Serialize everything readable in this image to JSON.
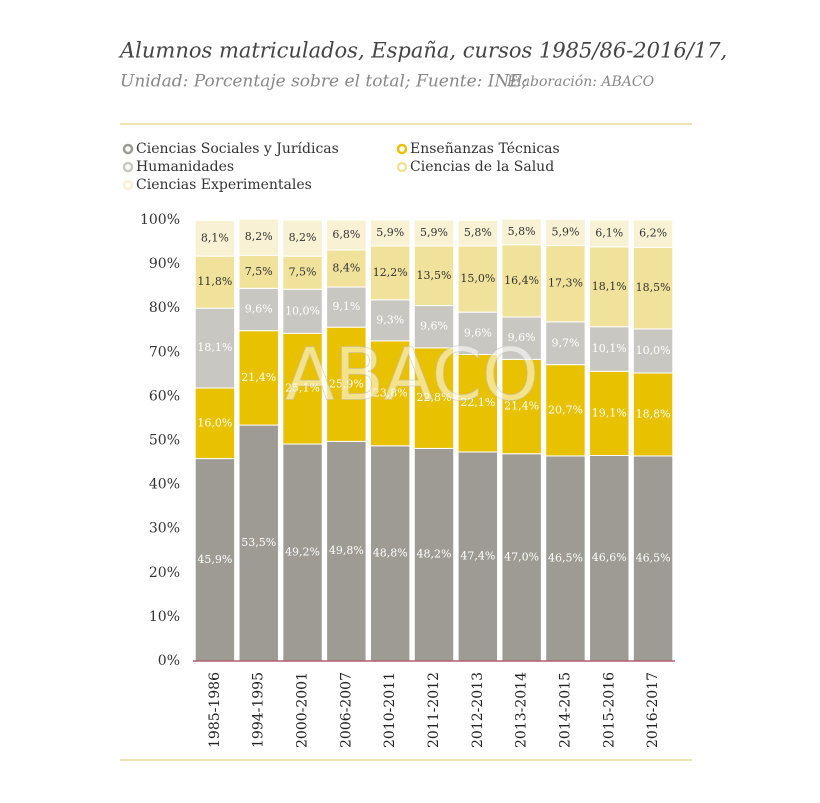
{
  "chart_data": {
    "type": "stacked_bar",
    "title": "Alumnos matriculados, España, cursos 1985/86-2016/17,",
    "subtitle": "Unidad: Porcentaje sobre el total; Fuente: INE;",
    "source_note": "Elaboración: ABACO",
    "watermark": "ABACO",
    "categories": [
      "1985-1986",
      "1994-1995",
      "2000-2001",
      "2006-2007",
      "2010-2011",
      "2011-2012",
      "2012-2013",
      "2013-2014",
      "2014-2015",
      "2015-2016",
      "2016-2017"
    ],
    "series": [
      {
        "name": "Ciencias Sociales y Jurídicas",
        "color": "#9d9b93",
        "label_color": "#ffffff",
        "values": [
          45.9,
          53.5,
          49.2,
          49.8,
          48.8,
          48.2,
          47.4,
          47.0,
          46.5,
          46.6,
          46.5
        ],
        "value_labels": [
          "45,9%",
          "53,5%",
          "49,2%",
          "49,8%",
          "48,8%",
          "48,2%",
          "47,4%",
          "47,0%",
          "46,5%",
          "46,6%",
          "46,5%"
        ]
      },
      {
        "name": "Enseñanzas Técnicas",
        "color": "#e8c100",
        "label_color": "#ffffff",
        "values": [
          16.0,
          21.4,
          25.1,
          25.9,
          23.8,
          22.8,
          22.1,
          21.4,
          20.7,
          19.1,
          18.8
        ],
        "value_labels": [
          "16,0%",
          "21,4%",
          "25,1%",
          "25,9%",
          "23,8%",
          "22,8%",
          "22,1%",
          "21,4%",
          "20,7%",
          "19,1%",
          "18,8%"
        ]
      },
      {
        "name": "Humanidades",
        "color": "#c9c7c1",
        "label_color": "#ffffff",
        "values": [
          18.1,
          9.6,
          10.0,
          9.1,
          9.3,
          9.6,
          9.6,
          9.6,
          9.7,
          10.1,
          10.0
        ],
        "value_labels": [
          "18,1%",
          "9,6%",
          "10,0%",
          "9,1%",
          "9,3%",
          "9,6%",
          "9,6%",
          "9,6%",
          "9,7%",
          "10,1%",
          "10,0%"
        ]
      },
      {
        "name": "Ciencias de la Salud",
        "color": "#f1e29b",
        "label_color": "#333333",
        "values": [
          11.8,
          7.5,
          7.5,
          8.4,
          12.2,
          13.5,
          15.0,
          16.4,
          17.3,
          18.1,
          18.5
        ],
        "value_labels": [
          "11,8%",
          "7,5%",
          "7,5%",
          "8,4%",
          "12,2%",
          "13,5%",
          "15,0%",
          "16,4%",
          "17,3%",
          "18,1%",
          "18,5%"
        ]
      },
      {
        "name": "Ciencias Experimentales",
        "color": "#f8f1d3",
        "label_color": "#333333",
        "values": [
          8.1,
          8.2,
          8.2,
          6.8,
          5.9,
          5.9,
          5.8,
          5.8,
          5.9,
          6.1,
          6.2
        ],
        "value_labels": [
          "8,1%",
          "8,2%",
          "8,2%",
          "6,8%",
          "5,9%",
          "5,9%",
          "5,8%",
          "5,8%",
          "5,9%",
          "6,1%",
          "6,2%"
        ]
      }
    ],
    "ylim": [
      0,
      100
    ],
    "yticks": [
      {
        "value": 0,
        "label": "0%"
      },
      {
        "value": 10,
        "label": "10%"
      },
      {
        "value": 20,
        "label": "20%"
      },
      {
        "value": 30,
        "label": "30%"
      },
      {
        "value": 40,
        "label": "40%"
      },
      {
        "value": 50,
        "label": "50%"
      },
      {
        "value": 60,
        "label": "60%"
      },
      {
        "value": 70,
        "label": "70%"
      },
      {
        "value": 80,
        "label": "80%"
      },
      {
        "value": 90,
        "label": "90%"
      },
      {
        "value": 100,
        "label": "100%"
      }
    ]
  }
}
